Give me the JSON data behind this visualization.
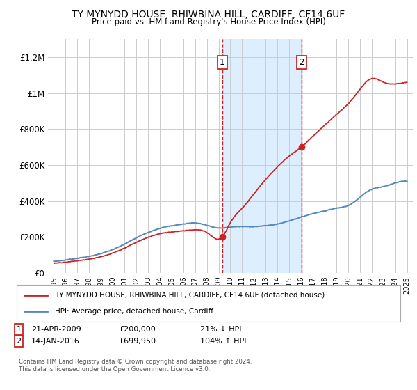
{
  "title": "TY MYNYDD HOUSE, RHIWBINA HILL, CARDIFF, CF14 6UF",
  "subtitle": "Price paid vs. HM Land Registry's House Price Index (HPI)",
  "hpi_color": "#5588bb",
  "price_color": "#cc2222",
  "marker_color": "#cc2222",
  "background_color": "#ffffff",
  "shaded_region_color": "#ddeeff",
  "grid_color": "#cccccc",
  "transaction1": {
    "date_label": "21-APR-2009",
    "price": 200000,
    "hpi_pct": "21% ↓ HPI",
    "x": 2009.3
  },
  "transaction2": {
    "date_label": "14-JAN-2016",
    "price": 699950,
    "hpi_pct": "104% ↑ HPI",
    "x": 2016.05
  },
  "legend_label1": "TY MYNYDD HOUSE, RHIWBINA HILL, CARDIFF, CF14 6UF (detached house)",
  "legend_label2": "HPI: Average price, detached house, Cardiff",
  "footer1": "Contains HM Land Registry data © Crown copyright and database right 2024.",
  "footer2": "This data is licensed under the Open Government Licence v3.0.",
  "ylim": [
    0,
    1300000
  ],
  "yticks": [
    0,
    200000,
    400000,
    600000,
    800000,
    1000000,
    1200000
  ],
  "ytick_labels": [
    "£0",
    "£200K",
    "£400K",
    "£600K",
    "£800K",
    "£1M",
    "£1.2M"
  ],
  "xmin": 1994.5,
  "xmax": 2025.5,
  "hpi_data_x": [
    1995,
    1996,
    1997,
    1998,
    1999,
    2000,
    2001,
    2002,
    2003,
    2004,
    2005,
    2006,
    2007,
    2008,
    2009,
    2010,
    2011,
    2012,
    2013,
    2014,
    2015,
    2016,
    2017,
    2018,
    2019,
    2020,
    2021,
    2022,
    2023,
    2024,
    2025
  ],
  "hpi_data_y": [
    65000,
    72000,
    82000,
    92000,
    108000,
    130000,
    160000,
    195000,
    225000,
    248000,
    262000,
    272000,
    278000,
    265000,
    250000,
    255000,
    258000,
    258000,
    263000,
    272000,
    290000,
    310000,
    330000,
    345000,
    360000,
    375000,
    420000,
    465000,
    480000,
    500000,
    510000
  ],
  "house_data_x": [
    1995,
    1996,
    1997,
    1998,
    1999,
    2000,
    2001,
    2002,
    2003,
    2004,
    2005,
    2006,
    2007,
    2008,
    2009.3,
    2010,
    2011,
    2012,
    2013,
    2014,
    2015,
    2016.05,
    2017,
    2018,
    2019,
    2020,
    2021,
    2022,
    2023,
    2024,
    2025
  ],
  "house_data_y": [
    55000,
    60000,
    68000,
    77000,
    90000,
    110000,
    138000,
    170000,
    198000,
    218000,
    228000,
    235000,
    240000,
    225000,
    200000,
    280000,
    360000,
    440000,
    520000,
    590000,
    650000,
    699950,
    760000,
    820000,
    880000,
    940000,
    1020000,
    1080000,
    1060000,
    1050000,
    1060000
  ]
}
